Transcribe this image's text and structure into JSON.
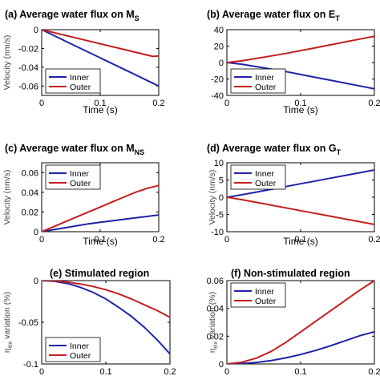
{
  "colors": {
    "inner": "#1f24a8",
    "outer": "#c41e1e"
  },
  "chart_data": [
    {
      "type": "line",
      "title": "(a) Average water flux on M",
      "title_sub": "S",
      "xlabel": "Time (s)",
      "ylabel": "Velocity (nm/s)",
      "xlim": [
        0,
        0.2
      ],
      "ylim": [
        -0.07,
        0
      ],
      "xticks": [
        0,
        0.1,
        0.2
      ],
      "xtick_labels": [
        "0",
        "0.1",
        "0.2"
      ],
      "yticks": [
        0,
        -0.02,
        -0.04,
        -0.06
      ],
      "ytick_labels": [
        "0",
        "-0.02",
        "-0.04",
        "-0.06"
      ],
      "legend": "bottom-left",
      "series": [
        {
          "name": "Inner",
          "color": "#1f24a8",
          "x": [
            0,
            0.01,
            0.02,
            0.03,
            0.04,
            0.05,
            0.06,
            0.07,
            0.08,
            0.09,
            0.1,
            0.11,
            0.12,
            0.13,
            0.14,
            0.15,
            0.16,
            0.17,
            0.18,
            0.19,
            0.2
          ],
          "y": [
            0,
            -0.003,
            -0.006,
            -0.009,
            -0.012,
            -0.015,
            -0.018,
            -0.021,
            -0.024,
            -0.027,
            -0.03,
            -0.033,
            -0.036,
            -0.039,
            -0.042,
            -0.045,
            -0.048,
            -0.051,
            -0.054,
            -0.057,
            -0.06
          ]
        },
        {
          "name": "Outer",
          "color": "#c41e1e",
          "x": [
            0,
            0.01,
            0.02,
            0.03,
            0.04,
            0.05,
            0.06,
            0.07,
            0.08,
            0.09,
            0.1,
            0.11,
            0.12,
            0.13,
            0.14,
            0.15,
            0.16,
            0.17,
            0.18,
            0.19,
            0.2
          ],
          "y": [
            0,
            -0.0015,
            -0.003,
            -0.0045,
            -0.006,
            -0.0075,
            -0.009,
            -0.0105,
            -0.012,
            -0.0135,
            -0.015,
            -0.0165,
            -0.018,
            -0.0195,
            -0.021,
            -0.0225,
            -0.024,
            -0.0255,
            -0.027,
            -0.0285,
            -0.028
          ]
        }
      ]
    },
    {
      "type": "line",
      "title": "(b) Average water flux on E",
      "title_sub": "T",
      "xlabel": "Time (s)",
      "ylabel": "",
      "xlim": [
        0,
        0.2
      ],
      "ylim": [
        -40,
        40
      ],
      "xticks": [
        0,
        0.1,
        0.2
      ],
      "xtick_labels": [
        "0",
        "0.1",
        "0.2"
      ],
      "yticks": [
        40,
        20,
        0,
        -20,
        -40
      ],
      "ytick_labels": [
        "40",
        "20",
        "0",
        "-20",
        "-40"
      ],
      "legend": "bottom-left",
      "series": [
        {
          "name": "Inner",
          "color": "#1f24a8",
          "x": [
            0,
            0.02,
            0.04,
            0.06,
            0.08,
            0.1,
            0.12,
            0.14,
            0.16,
            0.18,
            0.2
          ],
          "y": [
            0,
            -2,
            -5,
            -8,
            -11,
            -14.5,
            -18,
            -21.5,
            -25,
            -28.5,
            -32
          ]
        },
        {
          "name": "Outer",
          "color": "#c41e1e",
          "x": [
            0,
            0.02,
            0.04,
            0.06,
            0.08,
            0.1,
            0.12,
            0.14,
            0.16,
            0.18,
            0.2
          ],
          "y": [
            0,
            2,
            5,
            8,
            11,
            14.5,
            18,
            21.5,
            25,
            28.5,
            32
          ]
        }
      ]
    },
    {
      "type": "line",
      "title": "(c) Average water flux on M",
      "title_sub": "NS",
      "xlabel": "Time (s)",
      "ylabel": "Velocity (nm/s)",
      "xlim": [
        0,
        0.2
      ],
      "ylim": [
        0,
        0.07
      ],
      "xticks": [
        0,
        0.1,
        0.2
      ],
      "xtick_labels": [
        "0",
        "0.1",
        "0.2"
      ],
      "yticks": [
        0,
        0.02,
        0.04,
        0.06
      ],
      "ytick_labels": [
        "0",
        "0.02",
        "0.04",
        "0.06"
      ],
      "legend": "top-left",
      "series": [
        {
          "name": "Inner",
          "color": "#1f24a8",
          "x": [
            0,
            0.02,
            0.04,
            0.06,
            0.08,
            0.1,
            0.12,
            0.14,
            0.16,
            0.18,
            0.2
          ],
          "y": [
            0,
            0.002,
            0.004,
            0.006,
            0.008,
            0.0095,
            0.011,
            0.0125,
            0.014,
            0.0155,
            0.017
          ]
        },
        {
          "name": "Outer",
          "color": "#c41e1e",
          "x": [
            0,
            0.02,
            0.04,
            0.06,
            0.08,
            0.1,
            0.12,
            0.14,
            0.16,
            0.18,
            0.2
          ],
          "y": [
            0,
            0.005,
            0.01,
            0.015,
            0.02,
            0.025,
            0.03,
            0.035,
            0.04,
            0.044,
            0.047
          ]
        }
      ]
    },
    {
      "type": "line",
      "title": "(d) Average water flux on G",
      "title_sub": "T",
      "xlabel": "Time (s)",
      "ylabel": "Velocity (nm/s)",
      "xlim": [
        0,
        0.2
      ],
      "ylim": [
        -10,
        10
      ],
      "xticks": [
        0,
        0.1,
        0.2
      ],
      "xtick_labels": [
        "0",
        "0.1",
        "0.2"
      ],
      "yticks": [
        10,
        5,
        0,
        -5,
        -10
      ],
      "ytick_labels": [
        "10",
        "5",
        "0",
        "-5",
        "-10"
      ],
      "legend": "top-left",
      "series": [
        {
          "name": "Inner",
          "color": "#1f24a8",
          "x": [
            0,
            0.02,
            0.04,
            0.06,
            0.08,
            0.1,
            0.12,
            0.14,
            0.16,
            0.18,
            0.2
          ],
          "y": [
            0,
            0.7,
            1.5,
            2.3,
            3.1,
            3.9,
            4.7,
            5.5,
            6.3,
            7.1,
            7.9
          ]
        },
        {
          "name": "Outer",
          "color": "#c41e1e",
          "x": [
            0,
            0.02,
            0.04,
            0.06,
            0.08,
            0.1,
            0.12,
            0.14,
            0.16,
            0.18,
            0.2
          ],
          "y": [
            0,
            -0.7,
            -1.5,
            -2.3,
            -3.1,
            -3.9,
            -4.7,
            -5.5,
            -6.3,
            -7.1,
            -7.9
          ]
        }
      ]
    },
    {
      "type": "line",
      "title": "(e) Stimulated region",
      "title_sub": "",
      "xlabel": "",
      "ylabel": "η",
      "ylabel_sub": "ex",
      "ylabel_rest": " variation (%)",
      "xlim": [
        0,
        0.2
      ],
      "ylim": [
        -0.1,
        0
      ],
      "xticks": [
        0,
        0.1,
        0.2
      ],
      "xtick_labels": [
        "0",
        "0.1",
        "0.2"
      ],
      "yticks": [
        0,
        -0.05,
        -0.1
      ],
      "ytick_labels": [
        "0",
        "-0.05",
        "-0.1"
      ],
      "legend": "bottom-left",
      "series": [
        {
          "name": "Inner",
          "color": "#1f24a8",
          "x": [
            0,
            0.02,
            0.04,
            0.06,
            0.08,
            0.1,
            0.12,
            0.14,
            0.16,
            0.18,
            0.2
          ],
          "y": [
            0,
            -0.0009,
            -0.0035,
            -0.008,
            -0.014,
            -0.022,
            -0.032,
            -0.043,
            -0.056,
            -0.071,
            -0.088
          ]
        },
        {
          "name": "Outer",
          "color": "#c41e1e",
          "x": [
            0,
            0.02,
            0.04,
            0.06,
            0.08,
            0.1,
            0.12,
            0.14,
            0.16,
            0.18,
            0.2
          ],
          "y": [
            0,
            -0.0004,
            -0.0018,
            -0.004,
            -0.007,
            -0.011,
            -0.016,
            -0.022,
            -0.029,
            -0.036,
            -0.044
          ]
        }
      ]
    },
    {
      "type": "line",
      "title": "(f) Non-stimulated region",
      "title_sub": "",
      "xlabel": "",
      "ylabel": "η",
      "ylabel_sub": "ex",
      "ylabel_rest": " variation (%)",
      "xlim": [
        0,
        0.2
      ],
      "ylim": [
        0,
        0.06
      ],
      "xticks": [
        0,
        0.1,
        0.2
      ],
      "xtick_labels": [
        "0",
        "0.1",
        "0.2"
      ],
      "yticks": [
        0,
        0.02,
        0.04,
        0.06
      ],
      "ytick_labels": [
        "0",
        "0.02",
        "0.04",
        "0.06"
      ],
      "legend": "top-left",
      "series": [
        {
          "name": "Inner",
          "color": "#1f24a8",
          "x": [
            0,
            0.02,
            0.04,
            0.06,
            0.08,
            0.1,
            0.12,
            0.14,
            0.16,
            0.18,
            0.2
          ],
          "y": [
            0,
            0.0003,
            0.0011,
            0.0025,
            0.0044,
            0.0068,
            0.0097,
            0.013,
            0.0166,
            0.0203,
            0.0232
          ]
        },
        {
          "name": "Outer",
          "color": "#c41e1e",
          "x": [
            0,
            0.02,
            0.04,
            0.06,
            0.08,
            0.1,
            0.12,
            0.14,
            0.16,
            0.18,
            0.2
          ],
          "y": [
            0,
            0.0012,
            0.0042,
            0.009,
            0.0155,
            0.023,
            0.0305,
            0.038,
            0.0455,
            0.053,
            0.06
          ]
        }
      ]
    }
  ]
}
